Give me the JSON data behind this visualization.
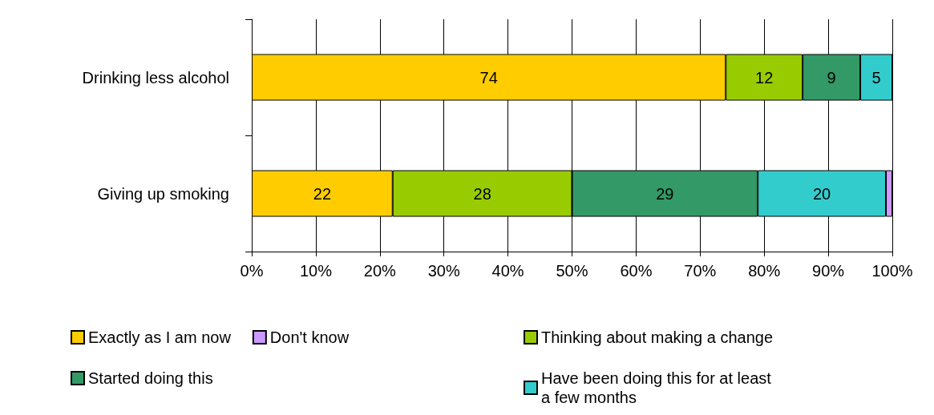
{
  "chart_data": {
    "type": "bar",
    "orientation": "horizontal",
    "stacked": true,
    "categories": [
      "Drinking less alcohol",
      "Giving up smoking"
    ],
    "series": [
      {
        "name": "Exactly as I am now",
        "color": "#ffcc00",
        "values": [
          74,
          22
        ],
        "value_labels": [
          "74",
          "22"
        ]
      },
      {
        "name": "Thinking about making a change",
        "color": "#99cc00",
        "values": [
          12,
          28
        ],
        "value_labels": [
          "12",
          "28"
        ]
      },
      {
        "name": "Started doing this",
        "color": "#339966",
        "values": [
          9,
          29
        ],
        "value_labels": [
          "9",
          "29"
        ]
      },
      {
        "name": "Have been doing this for at least a few months",
        "color": "#33cccc",
        "values": [
          5,
          20
        ],
        "value_labels": [
          "5",
          "20"
        ]
      },
      {
        "name": "Don't know",
        "color": "#cc99ff",
        "values": [
          0,
          1
        ],
        "value_labels": [
          null,
          null
        ]
      }
    ],
    "xlim": [
      0,
      100
    ],
    "xticks": [
      {
        "value": 0,
        "label": "0%"
      },
      {
        "value": 10,
        "label": "10%"
      },
      {
        "value": 20,
        "label": "20%"
      },
      {
        "value": 30,
        "label": "30%"
      },
      {
        "value": 40,
        "label": "40%"
      },
      {
        "value": 50,
        "label": "50%"
      },
      {
        "value": 60,
        "label": "60%"
      },
      {
        "value": 70,
        "label": "70%"
      },
      {
        "value": 80,
        "label": "80%"
      },
      {
        "value": 90,
        "label": "90%"
      },
      {
        "value": 100,
        "label": "100%"
      }
    ],
    "grid": "x",
    "legend": "bottom"
  }
}
